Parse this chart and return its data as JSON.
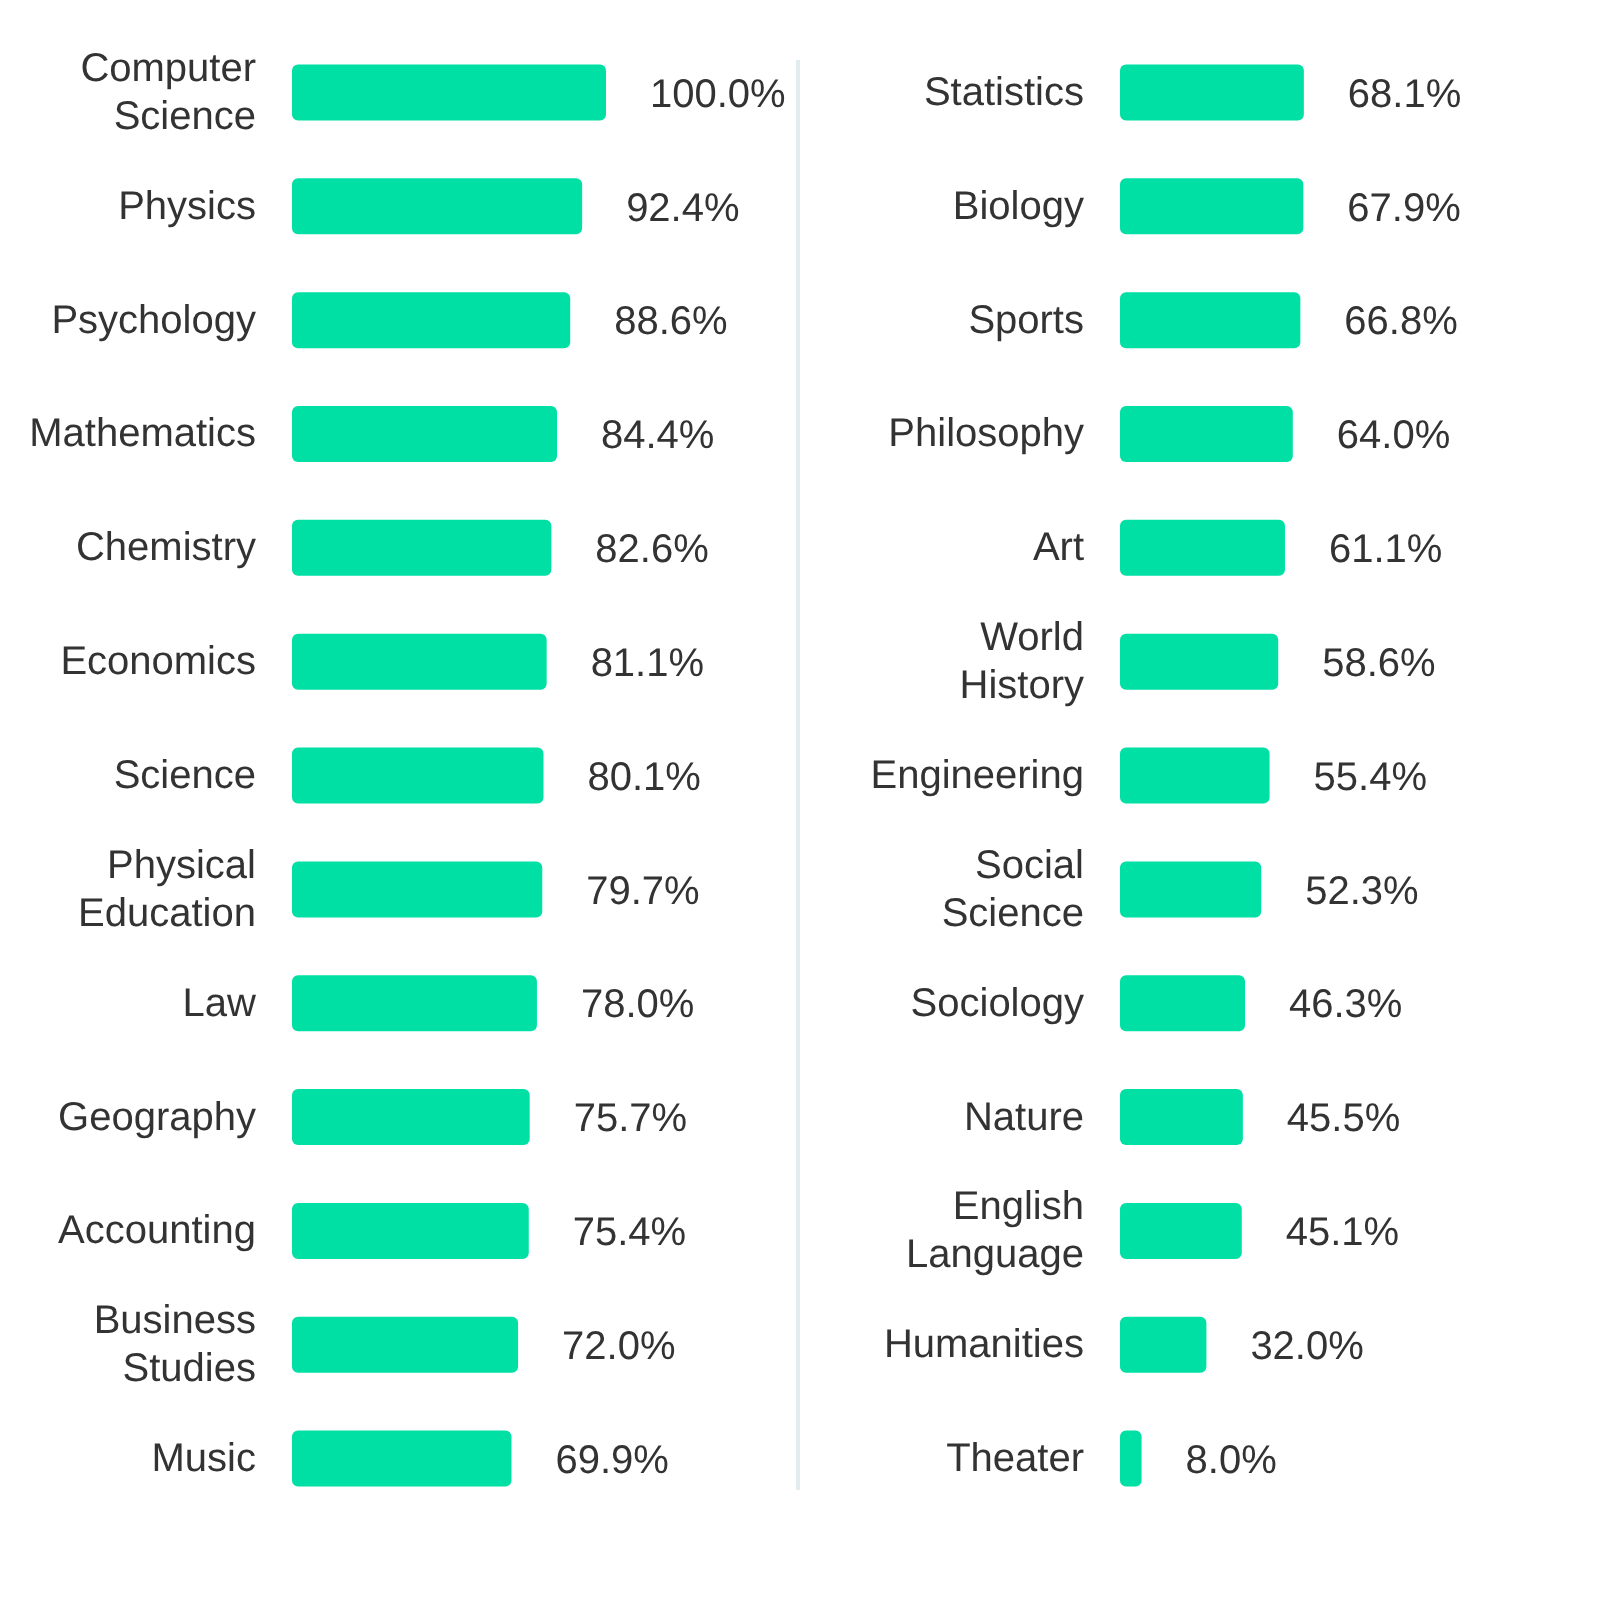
{
  "chart_data": [
    {
      "type": "bar",
      "orientation": "horizontal",
      "categories": [
        "Computer Science",
        "Physics",
        "Psychology",
        "Mathematics",
        "Chemistry",
        "Economics",
        "Science",
        "Physical Education",
        "Law",
        "Geography",
        "Accounting",
        "Business Studies",
        "Music"
      ],
      "values": [
        100.0,
        92.4,
        88.6,
        84.4,
        82.6,
        81.1,
        80.1,
        79.7,
        78.0,
        75.7,
        75.4,
        72.0,
        69.9
      ],
      "value_labels": [
        "100.0%",
        "92.4%",
        "88.6%",
        "84.4%",
        "82.6%",
        "81.1%",
        "80.1%",
        "79.7%",
        "78.0%",
        "75.7%",
        "75.4%",
        "72.0%",
        "69.9%"
      ],
      "color": "#00e0a4",
      "tick_labels": "y",
      "grid": false
    },
    {
      "type": "bar",
      "orientation": "horizontal",
      "categories": [
        "Statistics",
        "Biology",
        "Sports",
        "Philosophy",
        "Art",
        "World History",
        "Engineering",
        "Social Science",
        "Sociology",
        "Nature",
        "English Language",
        "Humanities",
        "Theater"
      ],
      "values": [
        68.1,
        67.9,
        66.8,
        64.0,
        61.1,
        58.6,
        55.4,
        52.3,
        46.3,
        45.5,
        45.1,
        32.0,
        8.0
      ],
      "value_labels": [
        "68.1%",
        "67.9%",
        "66.8%",
        "64.0%",
        "61.1%",
        "58.6%",
        "55.4%",
        "52.3%",
        "46.3%",
        "45.5%",
        "45.1%",
        "32.0%",
        "8.0%"
      ],
      "color": "#00e0a4",
      "tick_labels": "y",
      "grid": false
    }
  ]
}
